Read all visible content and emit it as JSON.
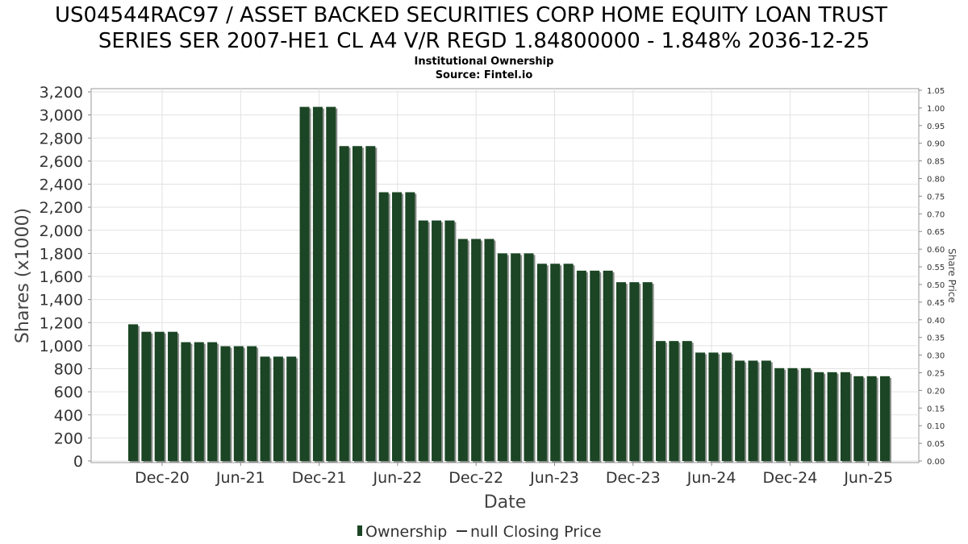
{
  "chart_data": {
    "type": "bar",
    "title_line1": "US04544RAC97 / ASSET BACKED SECURITIES CORP HOME EQUITY LOAN TRUST",
    "title_line2": "SERIES SER 2007-HE1 CL A4 V/R REGD 1.84800000 - 1.848% 2036-12-25",
    "subtitle_line1": "Institutional Ownership",
    "subtitle_line2": "Source: Fintel.io",
    "xlabel": "Date",
    "ylabel": "Shares (x1000)",
    "ylabel_right": "Share Price",
    "ylim": [
      0,
      3200
    ],
    "ylim_right": [
      0,
      1.05
    ],
    "yticks": [
      0,
      200,
      400,
      600,
      800,
      1000,
      1200,
      1400,
      1600,
      1800,
      2000,
      2200,
      2400,
      2600,
      2800,
      3000,
      3200
    ],
    "yticks_right": [
      "0.00",
      "0.05",
      "0.10",
      "0.15",
      "0.20",
      "0.25",
      "0.30",
      "0.35",
      "0.40",
      "0.45",
      "0.50",
      "0.55",
      "0.60",
      "0.65",
      "0.70",
      "0.75",
      "0.80",
      "0.85",
      "0.90",
      "0.95",
      "1.00",
      "1.05"
    ],
    "xticks": [
      "Dec-20",
      "Jun-21",
      "Dec-21",
      "Jun-22",
      "Dec-22",
      "Jun-23",
      "Dec-23",
      "Jun-24",
      "Dec-24",
      "Jun-25"
    ],
    "grid": true,
    "legend_position": "bottom",
    "series": [
      {
        "name": "Ownership",
        "color": "#1b4524",
        "values": [
          1185,
          1120,
          1120,
          1120,
          1030,
          1030,
          1030,
          995,
          995,
          995,
          905,
          905,
          905,
          3070,
          3070,
          3070,
          2730,
          2730,
          2730,
          2330,
          2330,
          2330,
          2085,
          2085,
          2085,
          1925,
          1925,
          1925,
          1800,
          1800,
          1800,
          1710,
          1710,
          1710,
          1650,
          1650,
          1650,
          1550,
          1550,
          1550,
          1040,
          1040,
          1040,
          940,
          940,
          940,
          870,
          870,
          870,
          805,
          805,
          805,
          770,
          770,
          770,
          735,
          735,
          735
        ]
      },
      {
        "name": "null Closing Price",
        "color": "#333333",
        "values": []
      }
    ]
  }
}
